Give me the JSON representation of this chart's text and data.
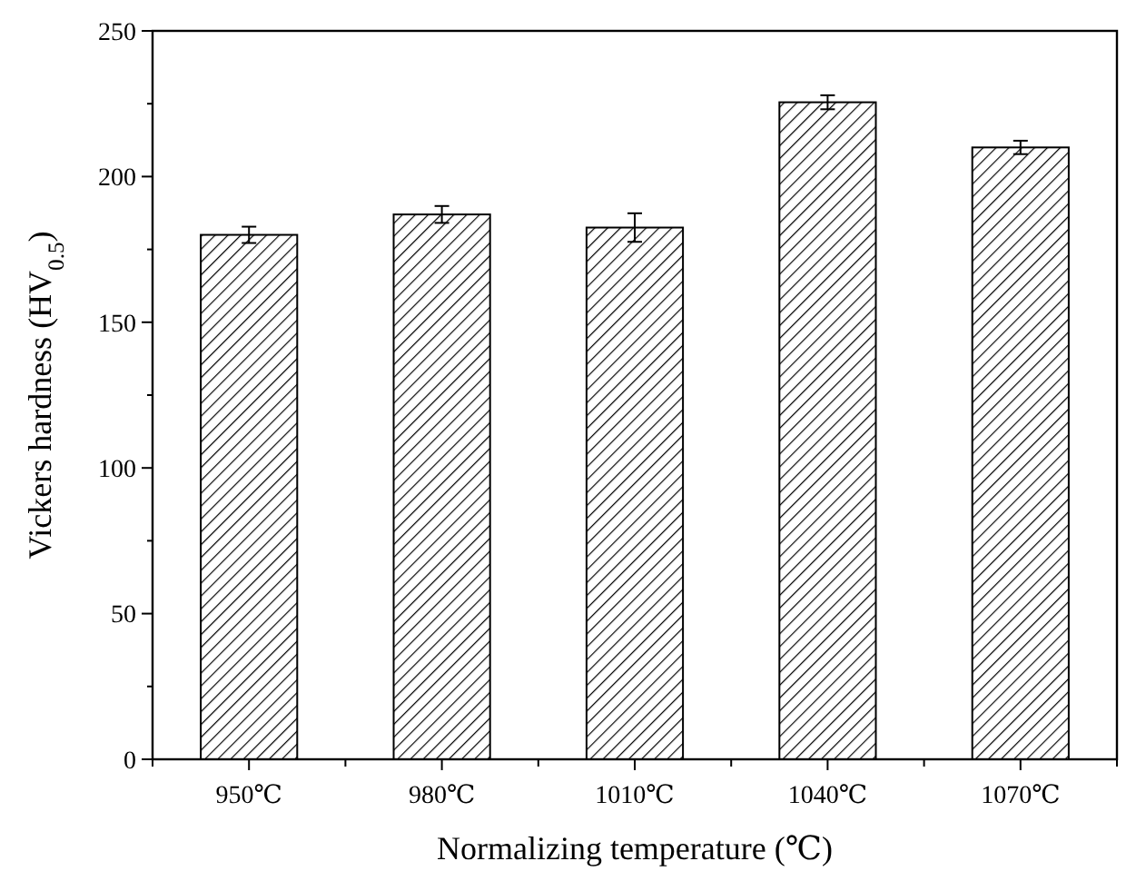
{
  "chart_data": {
    "type": "bar",
    "xlabel": "Normalizing temperature (℃)",
    "ylabel": "Vickers hardness (HV$_{0.5}$)",
    "categories": [
      "950℃",
      "980℃",
      "1010℃",
      "1040℃",
      "1070℃"
    ],
    "values": [
      180,
      187,
      182.5,
      225.5,
      210
    ],
    "errors": [
      2.8,
      2.9,
      4.9,
      2.4,
      2.3
    ],
    "color": "#000000",
    "ylim": [
      0,
      250
    ],
    "yticks": [
      0,
      {
        "value": 25,
        "label": null
      },
      50,
      {
        "value": 75,
        "label": null
      },
      100,
      {
        "value": 125,
        "label": null
      },
      150,
      {
        "value": 175,
        "label": null
      },
      200,
      {
        "value": 225,
        "label": null
      },
      250
    ],
    "grid": false
  }
}
